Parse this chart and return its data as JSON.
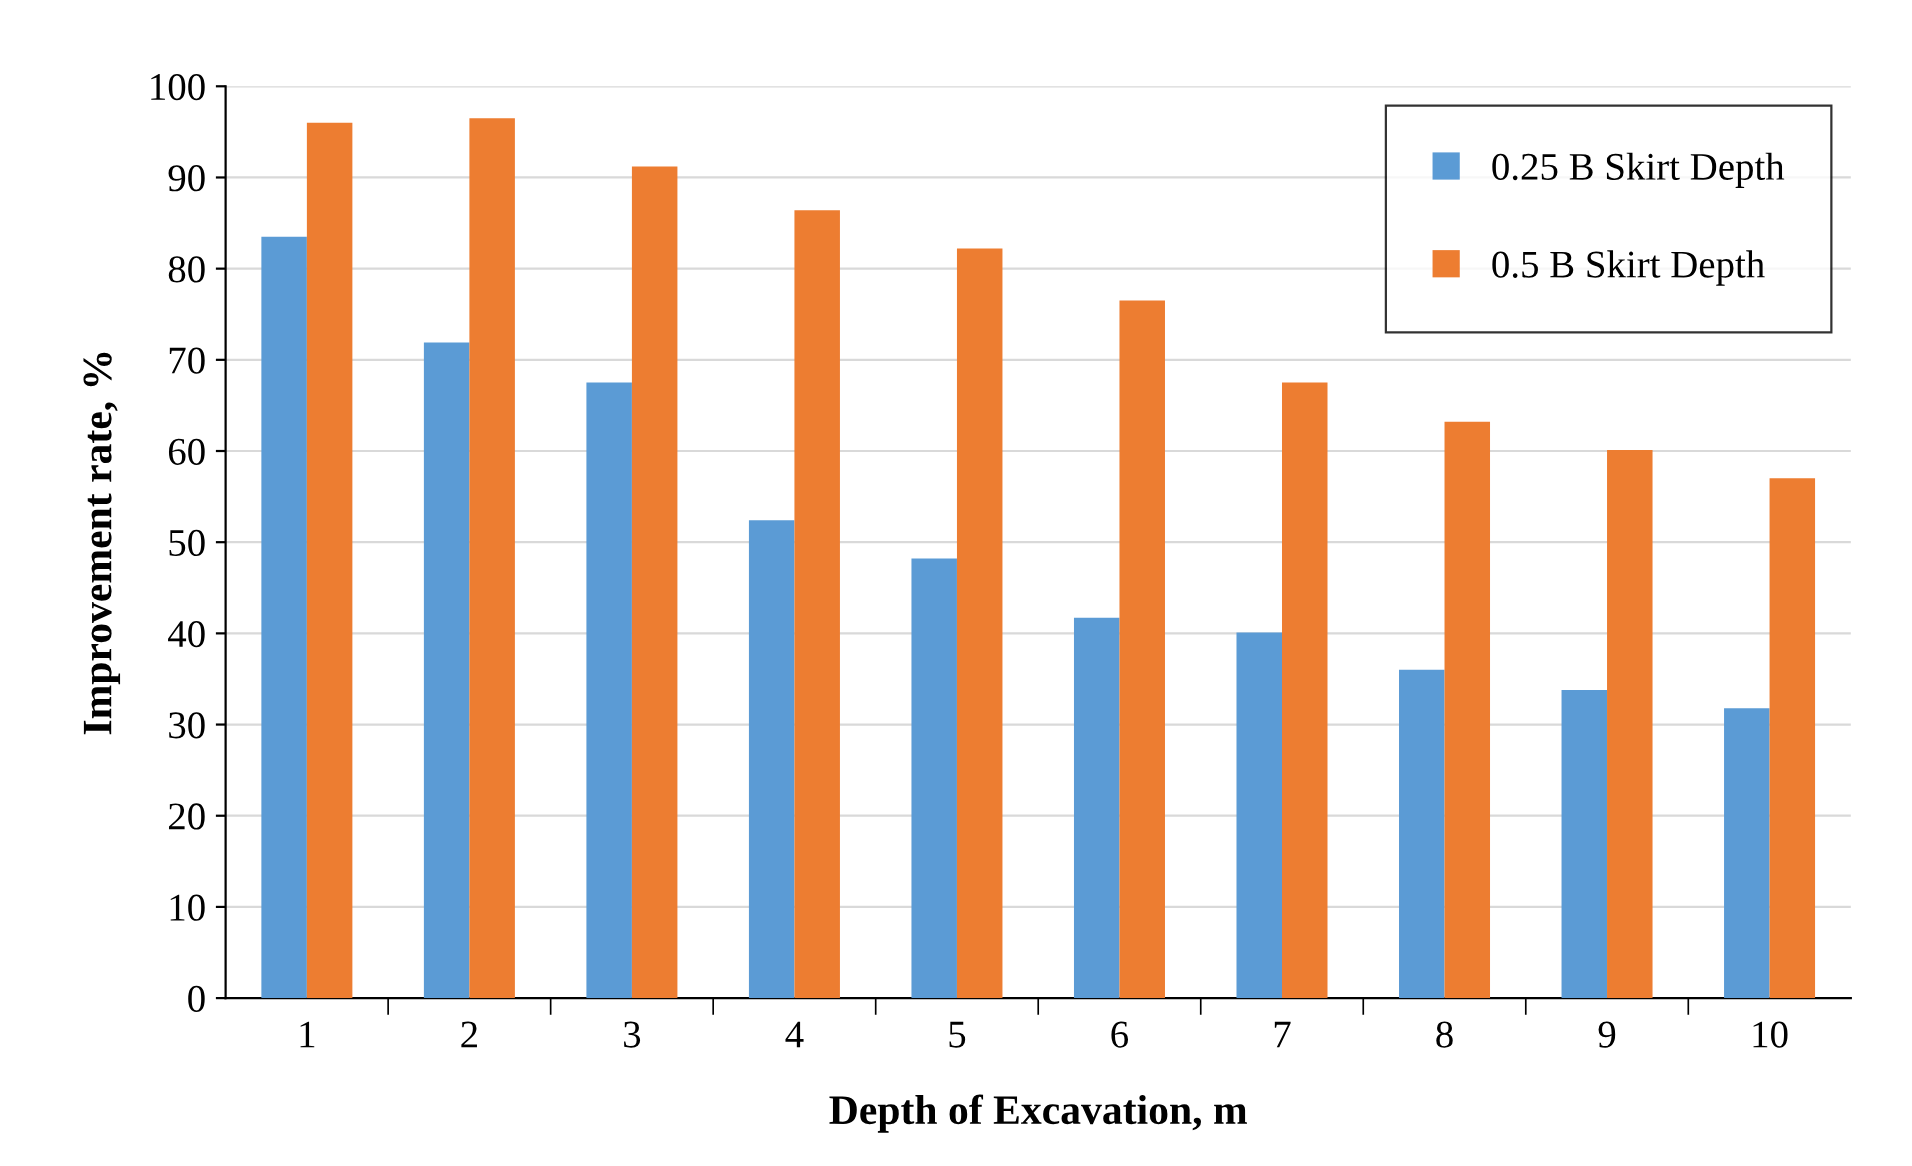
{
  "chart_data": {
    "type": "bar",
    "xlabel": "Depth of Excavation, m",
    "ylabel": "Improvement rate, %",
    "categories": [
      "1",
      "2",
      "3",
      "4",
      "5",
      "6",
      "7",
      "8",
      "9",
      "10"
    ],
    "series": [
      {
        "name": "0.25 B Skirt Depth",
        "color": "#5b9bd5",
        "values": [
          83.5,
          71.9,
          67.5,
          52.4,
          48.2,
          41.7,
          40.1,
          36.0,
          33.8,
          31.8
        ]
      },
      {
        "name": "0.5 B Skirt Depth",
        "color": "#ed7d31",
        "values": [
          96.0,
          96.5,
          91.2,
          86.4,
          82.2,
          76.5,
          67.5,
          63.2,
          60.1,
          57.0
        ]
      }
    ],
    "ylim": [
      0,
      100
    ],
    "yticks": [
      0,
      10,
      20,
      30,
      40,
      50,
      60,
      70,
      80,
      90,
      100
    ],
    "grid": "y",
    "legend": "top right"
  }
}
